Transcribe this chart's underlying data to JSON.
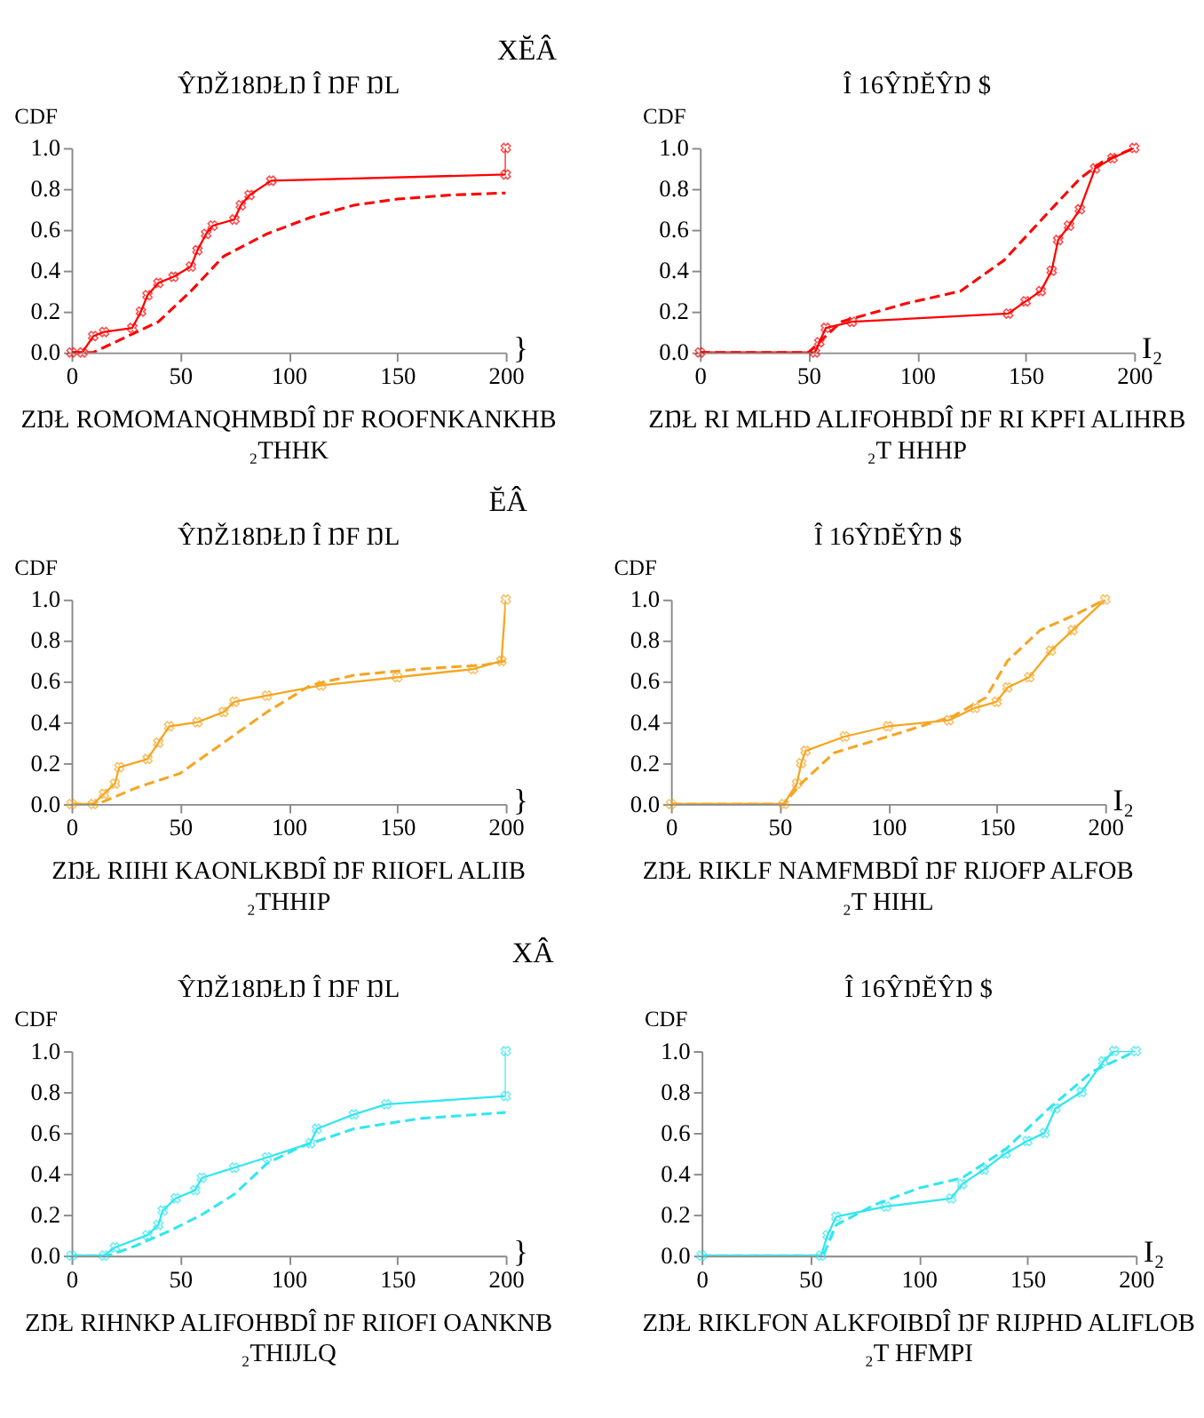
{
  "chart_data": [
    {
      "type": "line",
      "title": "XĔÂ",
      "subtitle": "ŶŊŽ18ŊŁŊ Î ŊF ŊL",
      "ylabel": "CDF",
      "xlabel": "}",
      "annotations": [
        "ZŊŁ ROMOMANQHMBDÎ ŊF ROOFNKANKHB",
        "₂THHK"
      ],
      "xlim": [
        0,
        200
      ],
      "xticks": [
        0,
        50,
        100,
        150,
        200
      ],
      "ylim": [
        0,
        1
      ],
      "yticks": [
        {
          "value": 0,
          "label": "0.0"
        },
        {
          "value": 0.2,
          "label": "0.2"
        },
        {
          "value": 0.4,
          "label": "0.4"
        },
        {
          "value": 0.6,
          "label": "0.6"
        },
        {
          "value": 0.8,
          "label": "0.8"
        },
        {
          "value": 1,
          "label": "1.0"
        }
      ],
      "grid": false,
      "legend": false,
      "series": [
        {
          "color": "#ff0000",
          "line_style": "solid",
          "marker": "cross",
          "x": [
            0,
            5,
            10,
            15,
            28,
            32,
            35,
            40,
            47,
            55,
            58,
            62,
            65,
            75,
            78,
            82,
            92,
            200,
            200
          ],
          "values": [
            0,
            0,
            0.08,
            0.1,
            0.12,
            0.2,
            0.28,
            0.34,
            0.37,
            0.42,
            0.5,
            0.58,
            0.62,
            0.65,
            0.72,
            0.77,
            0.84,
            0.87,
            1.0
          ]
        },
        {
          "color": "#ff0000",
          "line_style": "dashed",
          "marker": "none",
          "x": [
            0,
            10,
            20,
            40,
            55,
            70,
            90,
            110,
            130,
            150,
            175,
            200
          ],
          "values": [
            0,
            0,
            0.05,
            0.15,
            0.3,
            0.47,
            0.58,
            0.66,
            0.72,
            0.75,
            0.77,
            0.78
          ]
        }
      ]
    },
    {
      "type": "line",
      "subtitle": "Î 16ŶŊĔŶŊ $",
      "ylabel": "CDF",
      "xlabel": "I₂",
      "annotations": [
        "ZŊŁ RI MLHD ALIFOHBDÎ ŊF RI KPFI ALIHRB",
        "₂T HHHP"
      ],
      "xlim": [
        0,
        200
      ],
      "xticks": [
        0,
        50,
        100,
        150,
        200
      ],
      "ylim": [
        0,
        1
      ],
      "yticks": [
        {
          "value": 0,
          "label": "0.0"
        },
        {
          "value": 0.2,
          "label": "0.2"
        },
        {
          "value": 0.4,
          "label": "0.4"
        },
        {
          "value": 0.6,
          "label": "0.6"
        },
        {
          "value": 0.8,
          "label": "0.8"
        },
        {
          "value": 1,
          "label": "1.0"
        }
      ],
      "grid": false,
      "legend": false,
      "series": [
        {
          "color": "#ff0000",
          "line_style": "solid",
          "marker": "cross",
          "x": [
            0,
            53,
            55,
            58,
            70,
            142,
            150,
            157,
            162,
            165,
            170,
            175,
            182,
            190,
            200
          ],
          "values": [
            0,
            0,
            0.05,
            0.12,
            0.15,
            0.19,
            0.25,
            0.3,
            0.4,
            0.55,
            0.62,
            0.7,
            0.9,
            0.95,
            1.0
          ]
        },
        {
          "color": "#ff0000",
          "line_style": "dashed",
          "marker": "none",
          "x": [
            0,
            50,
            55,
            65,
            95,
            120,
            140,
            160,
            175,
            185,
            200
          ],
          "values": [
            0,
            0,
            0.05,
            0.15,
            0.24,
            0.3,
            0.45,
            0.68,
            0.85,
            0.93,
            1.0
          ]
        }
      ]
    },
    {
      "type": "line",
      "title": "ĔÂ",
      "subtitle": "ŶŊŽ18ŊŁŊ Î ŊF ŊL",
      "ylabel": "CDF",
      "xlabel": "}",
      "annotations": [
        "ZŊŁ RIIHI KAONLKBDÎ ŊF RIIOFL ALIIB",
        "₂THHIP"
      ],
      "xlim": [
        0,
        200
      ],
      "xticks": [
        0,
        50,
        100,
        150,
        200
      ],
      "ylim": [
        0,
        1
      ],
      "yticks": [
        {
          "value": 0,
          "label": "0.0"
        },
        {
          "value": 0.2,
          "label": "0.2"
        },
        {
          "value": 0.4,
          "label": "0.4"
        },
        {
          "value": 0.6,
          "label": "0.6"
        },
        {
          "value": 0.8,
          "label": "0.8"
        },
        {
          "value": 1,
          "label": "1.0"
        }
      ],
      "grid": false,
      "legend": false,
      "series": [
        {
          "color": "#f5a623",
          "line_style": "solid",
          "marker": "cross",
          "x": [
            0,
            10,
            15,
            20,
            22,
            35,
            40,
            45,
            58,
            70,
            75,
            90,
            115,
            150,
            185,
            198,
            200
          ],
          "values": [
            0,
            0,
            0.05,
            0.1,
            0.18,
            0.22,
            0.3,
            0.38,
            0.4,
            0.45,
            0.5,
            0.53,
            0.58,
            0.62,
            0.66,
            0.7,
            1.0
          ]
        },
        {
          "color": "#f5a623",
          "line_style": "dashed",
          "marker": "none",
          "x": [
            0,
            12,
            30,
            50,
            70,
            90,
            110,
            130,
            160,
            190,
            200
          ],
          "values": [
            0,
            0,
            0.08,
            0.15,
            0.3,
            0.45,
            0.58,
            0.63,
            0.66,
            0.68,
            0.7
          ]
        }
      ]
    },
    {
      "type": "line",
      "subtitle": "Î 16ŶŊĔŶŊ $",
      "ylabel": "CDF",
      "xlabel": "I₂",
      "annotations": [
        "ZŊŁ RIKLF NAMFMBDÎ ŊF RIJOFP ALFOB",
        "₂T HIHL"
      ],
      "xlim": [
        0,
        200
      ],
      "xticks": [
        0,
        50,
        100,
        150,
        200
      ],
      "ylim": [
        0,
        1
      ],
      "yticks": [
        {
          "value": 0,
          "label": "0.0"
        },
        {
          "value": 0.2,
          "label": "0.2"
        },
        {
          "value": 0.4,
          "label": "0.4"
        },
        {
          "value": 0.6,
          "label": "0.6"
        },
        {
          "value": 0.8,
          "label": "0.8"
        },
        {
          "value": 1,
          "label": "1.0"
        }
      ],
      "grid": false,
      "legend": false,
      "series": [
        {
          "color": "#f5a623",
          "line_style": "solid",
          "marker": "cross",
          "x": [
            0,
            52,
            58,
            60,
            62,
            80,
            100,
            128,
            140,
            150,
            155,
            165,
            175,
            185,
            200
          ],
          "values": [
            0,
            0,
            0.1,
            0.2,
            0.26,
            0.33,
            0.38,
            0.41,
            0.47,
            0.5,
            0.57,
            0.62,
            0.75,
            0.85,
            1.0
          ]
        },
        {
          "color": "#f5a623",
          "line_style": "dashed",
          "marker": "none",
          "x": [
            0,
            52,
            60,
            75,
            100,
            130,
            145,
            155,
            170,
            185,
            200
          ],
          "values": [
            0,
            0,
            0.1,
            0.25,
            0.33,
            0.43,
            0.52,
            0.7,
            0.85,
            0.92,
            1.0
          ]
        }
      ]
    },
    {
      "type": "line",
      "title": "XÂ",
      "subtitle": "ŶŊŽ18ŊŁŊ Î ŊF ŊL",
      "ylabel": "CDF",
      "xlabel": "}",
      "annotations": [
        "ZŊŁ RIHNKP ALIFOHBDÎ ŊF RIIOFI OANKNB",
        "₂THIJLQ"
      ],
      "xlim": [
        0,
        200
      ],
      "xticks": [
        0,
        50,
        100,
        150,
        200
      ],
      "ylim": [
        0,
        1
      ],
      "yticks": [
        {
          "value": 0,
          "label": "0.0"
        },
        {
          "value": 0.2,
          "label": "0.2"
        },
        {
          "value": 0.4,
          "label": "0.4"
        },
        {
          "value": 0.6,
          "label": "0.6"
        },
        {
          "value": 0.8,
          "label": "0.8"
        },
        {
          "value": 1,
          "label": "1.0"
        }
      ],
      "grid": false,
      "legend": false,
      "series": [
        {
          "color": "#33e6f0",
          "line_style": "solid",
          "marker": "cross",
          "x": [
            0,
            15,
            20,
            35,
            40,
            42,
            48,
            57,
            60,
            75,
            90,
            110,
            113,
            130,
            145,
            200,
            200
          ],
          "values": [
            0,
            0,
            0.04,
            0.1,
            0.15,
            0.22,
            0.28,
            0.32,
            0.38,
            0.43,
            0.48,
            0.55,
            0.62,
            0.69,
            0.74,
            0.78,
            1.0
          ]
        },
        {
          "color": "#33e6f0",
          "line_style": "dashed",
          "marker": "none",
          "x": [
            0,
            17,
            30,
            45,
            60,
            75,
            90,
            105,
            130,
            160,
            200
          ],
          "values": [
            0,
            0,
            0.05,
            0.12,
            0.2,
            0.3,
            0.45,
            0.53,
            0.62,
            0.67,
            0.7
          ]
        }
      ]
    },
    {
      "type": "line",
      "subtitle": "Î 16ŶŊĔŶŊ $",
      "ylabel": "CDF",
      "xlabel": "I₂",
      "annotations": [
        "ZŊŁ RIKLFON ALKFOIBDÎ ŊF RIJPHD ALIFLOB",
        "₂T HFMPI"
      ],
      "xlim": [
        0,
        200
      ],
      "xticks": [
        0,
        50,
        100,
        150,
        200
      ],
      "ylim": [
        0,
        1
      ],
      "yticks": [
        {
          "value": 0,
          "label": "0.0"
        },
        {
          "value": 0.2,
          "label": "0.2"
        },
        {
          "value": 0.4,
          "label": "0.4"
        },
        {
          "value": 0.6,
          "label": "0.6"
        },
        {
          "value": 0.8,
          "label": "0.8"
        },
        {
          "value": 1,
          "label": "1.0"
        }
      ],
      "grid": false,
      "legend": false,
      "series": [
        {
          "color": "#33e6f0",
          "line_style": "solid",
          "marker": "cross",
          "x": [
            0,
            55,
            58,
            62,
            85,
            115,
            120,
            130,
            140,
            150,
            158,
            163,
            175,
            185,
            190,
            200
          ],
          "values": [
            0,
            0,
            0.1,
            0.19,
            0.24,
            0.28,
            0.35,
            0.42,
            0.5,
            0.56,
            0.6,
            0.72,
            0.8,
            0.95,
            1.0,
            1.0
          ]
        },
        {
          "color": "#33e6f0",
          "line_style": "dashed",
          "marker": "none",
          "x": [
            0,
            56,
            62,
            80,
            100,
            120,
            140,
            160,
            180,
            200
          ],
          "values": [
            0,
            0,
            0.15,
            0.25,
            0.33,
            0.38,
            0.52,
            0.72,
            0.9,
            1.0
          ]
        }
      ]
    }
  ]
}
